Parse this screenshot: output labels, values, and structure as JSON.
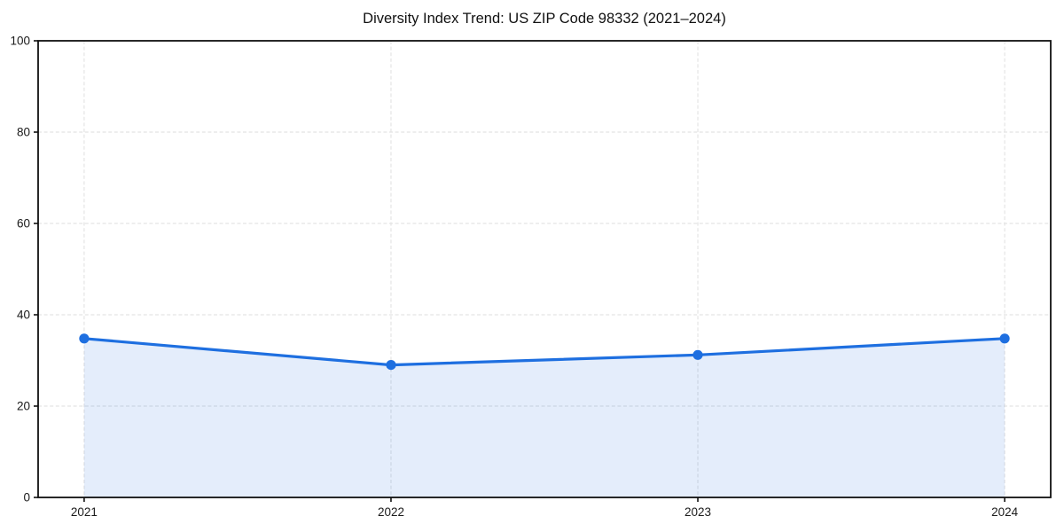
{
  "chart_data": {
    "type": "area",
    "title": "Diversity Index Trend: US ZIP Code 98332 (2021–2024)",
    "x": [
      "2021",
      "2022",
      "2023",
      "2024"
    ],
    "series": [
      {
        "name": "Diversity Index",
        "values": [
          34.8,
          29.0,
          31.2,
          34.8
        ]
      }
    ],
    "xlabel": "",
    "ylabel": "",
    "ylim": [
      0,
      100
    ],
    "yticks": [
      0,
      20,
      40,
      60,
      80,
      100
    ],
    "xticks": [
      "2021",
      "2022",
      "2023",
      "2024"
    ],
    "grid": true,
    "grid_style": "dashed",
    "legend_position": "none",
    "colors": {
      "line": "#1E6FE0",
      "marker": "#1E6FE0",
      "fill": "#1E6FE0",
      "fill_opacity": 0.12,
      "grid": "#E4E4E4",
      "spine": "#111111",
      "tick_text": "#1a1a1a",
      "background": "#FFFFFF"
    }
  }
}
